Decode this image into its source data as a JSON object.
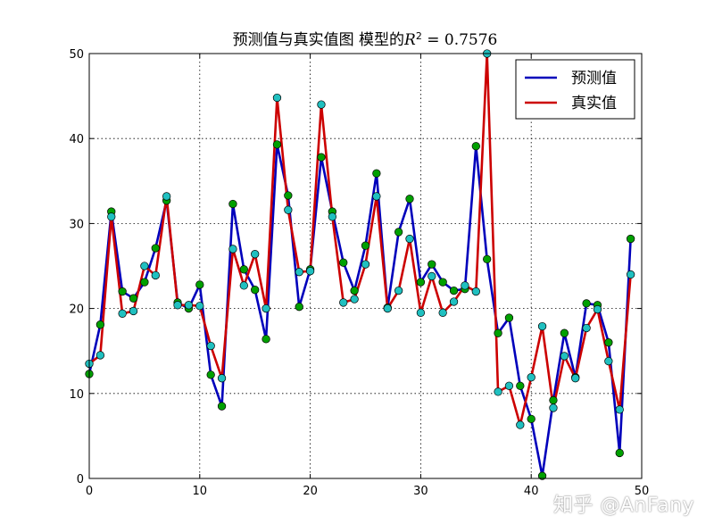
{
  "chart_data": {
    "type": "line",
    "title": "预测值与真实值图 模型的R² = 0.7576",
    "title_parts": {
      "prefix": "预测值与真实值图 模型的",
      "r2_symbol": "R",
      "r2_power": "2",
      "r2_rest": " = 0.7576"
    },
    "xlabel": "",
    "ylabel": "",
    "xlim": [
      0,
      50
    ],
    "ylim": [
      0,
      50
    ],
    "xticks": [
      0,
      10,
      20,
      30,
      40,
      50
    ],
    "yticks": [
      0,
      10,
      20,
      30,
      40,
      50
    ],
    "grid": true,
    "legend_position": "top-right",
    "x": [
      0,
      1,
      2,
      3,
      4,
      5,
      6,
      7,
      8,
      9,
      10,
      11,
      12,
      13,
      14,
      15,
      16,
      17,
      18,
      19,
      20,
      21,
      22,
      23,
      24,
      25,
      26,
      27,
      28,
      29,
      30,
      31,
      32,
      33,
      34,
      35,
      36,
      37,
      38,
      39,
      40,
      41,
      42,
      43,
      44,
      45,
      46,
      47,
      48,
      49
    ],
    "series": [
      {
        "name": "预测值",
        "color": "#0000bb",
        "marker_color": "#00a000",
        "values": [
          12.3,
          18.1,
          31.4,
          22.0,
          21.2,
          23.1,
          27.1,
          32.7,
          20.7,
          20.0,
          22.8,
          12.2,
          8.5,
          32.3,
          24.6,
          22.2,
          16.4,
          39.3,
          33.3,
          20.2,
          24.6,
          37.8,
          31.4,
          25.4,
          22.1,
          27.4,
          35.9,
          20.1,
          29.0,
          32.9,
          23.1,
          25.2,
          23.1,
          22.1,
          22.3,
          39.1,
          25.8,
          17.1,
          18.9,
          10.9,
          7.0,
          0.3,
          9.2,
          17.1,
          11.9,
          20.6,
          20.4,
          16.0,
          3.0,
          28.2
        ]
      },
      {
        "name": "真实值",
        "color": "#cc0000",
        "marker_color": "#20c0c0",
        "values": [
          13.5,
          14.5,
          30.8,
          19.4,
          19.7,
          25.0,
          23.9,
          33.2,
          20.4,
          20.4,
          20.3,
          15.6,
          11.8,
          27.0,
          22.7,
          26.4,
          20.0,
          44.8,
          31.6,
          24.3,
          24.4,
          44.0,
          30.8,
          20.7,
          21.1,
          25.2,
          33.2,
          20.0,
          22.1,
          28.2,
          19.5,
          23.8,
          19.5,
          20.8,
          22.7,
          22.0,
          50.0,
          10.2,
          10.9,
          6.3,
          11.9,
          17.9,
          8.3,
          14.4,
          11.8,
          17.7,
          19.9,
          13.8,
          8.1,
          24.0
        ]
      }
    ]
  },
  "watermark": "知乎 @AnFany"
}
